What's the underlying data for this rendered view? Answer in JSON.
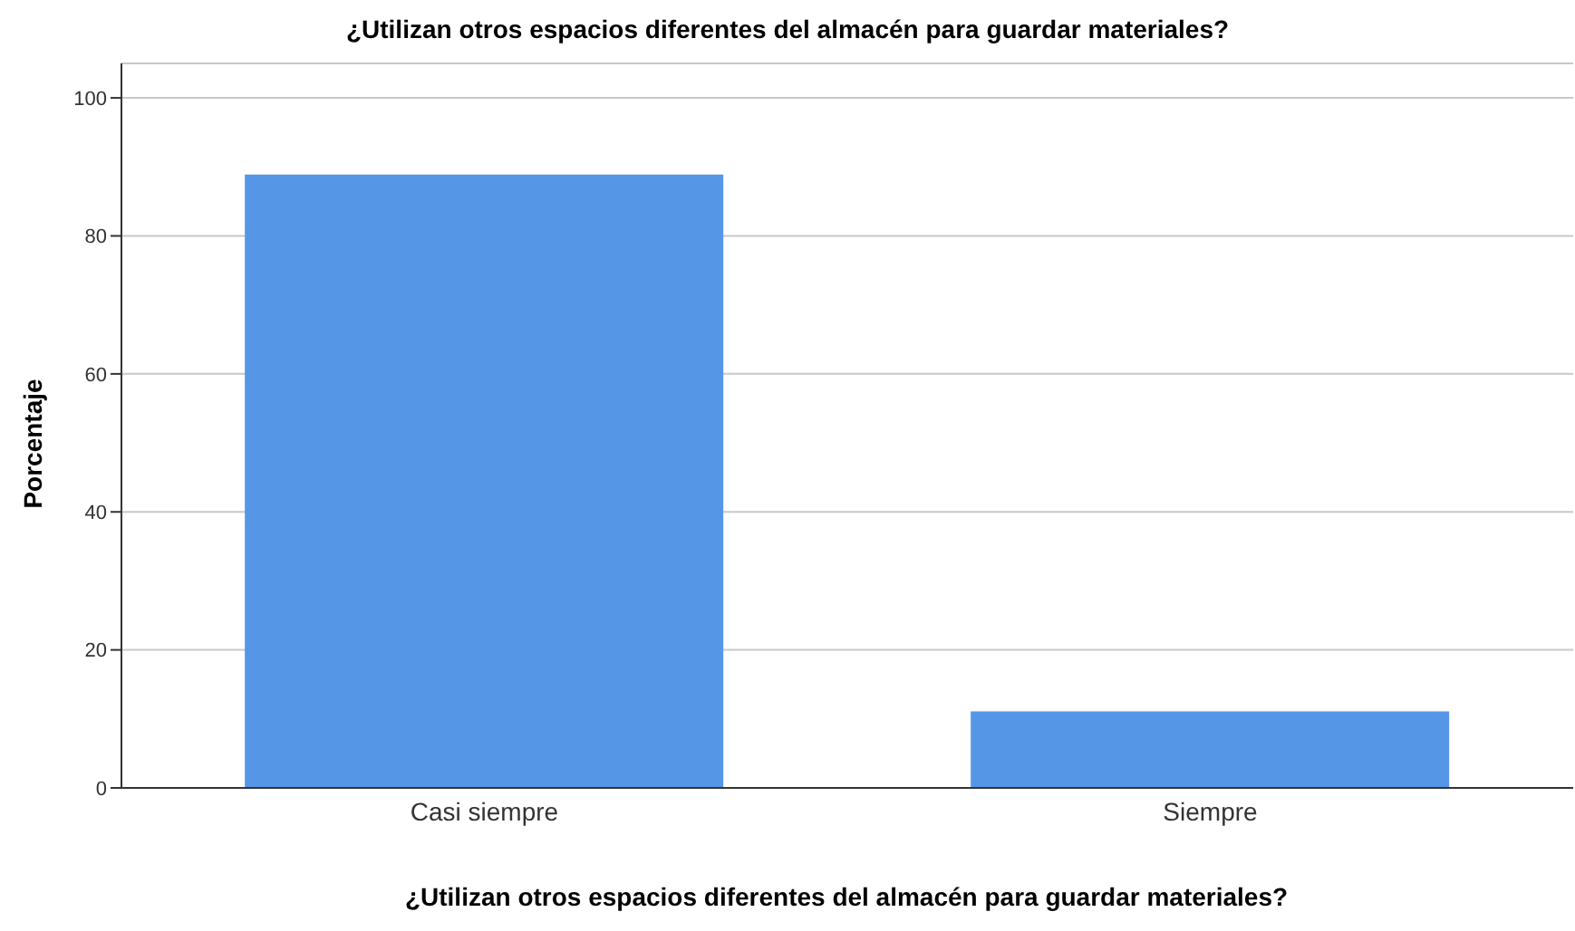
{
  "chart_data": {
    "type": "bar",
    "title": "¿Utilizan otros espacios diferentes del almacén para guardar materiales?",
    "xlabel": "¿Utilizan otros espacios diferentes del almacén para guardar materiales?",
    "ylabel": "Porcentaje",
    "categories": [
      "Casi siempre",
      "Siempre"
    ],
    "values": [
      88.9,
      11.1
    ],
    "color": "#5596e6",
    "ylim": [
      0,
      105
    ],
    "yticks": [
      0,
      20,
      40,
      60,
      80,
      100
    ],
    "grid": "y"
  }
}
